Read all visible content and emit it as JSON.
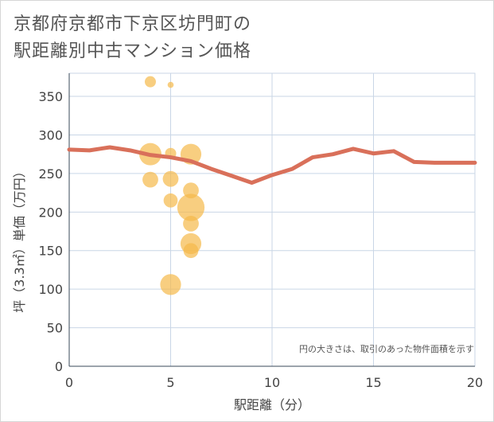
{
  "chart_data": {
    "type": "scatter",
    "title_line1": "京都府京都市下京区坊門町の",
    "title_line2": "駅距離別中古マンション価格",
    "xlabel": "駅距離（分）",
    "ylabel": "坪（3.3㎡）単価（万円）",
    "xlim": [
      0,
      20
    ],
    "ylim": [
      0,
      380
    ],
    "xticks": [
      0,
      5,
      10,
      15,
      20
    ],
    "yticks": [
      0,
      50,
      100,
      150,
      200,
      250,
      300,
      350
    ],
    "note": "円の大きさは、取引のあった物件面積を示す",
    "colors": {
      "bubble": "#f5b94a",
      "line": "#d9705a",
      "grid": "#c9d6e6"
    },
    "bubbles": [
      {
        "x": 4,
        "y": 369,
        "size": 1
      },
      {
        "x": 5,
        "y": 365,
        "size": 0.3
      },
      {
        "x": 4,
        "y": 275,
        "size": 4
      },
      {
        "x": 4,
        "y": 242,
        "size": 2
      },
      {
        "x": 5,
        "y": 276,
        "size": 1
      },
      {
        "x": 5,
        "y": 243,
        "size": 2
      },
      {
        "x": 5,
        "y": 215,
        "size": 1.6
      },
      {
        "x": 5,
        "y": 106,
        "size": 3.5
      },
      {
        "x": 6,
        "y": 275,
        "size": 3.5
      },
      {
        "x": 6,
        "y": 228,
        "size": 2
      },
      {
        "x": 6,
        "y": 206,
        "size": 6
      },
      {
        "x": 6,
        "y": 185,
        "size": 2
      },
      {
        "x": 6,
        "y": 159,
        "size": 3.5
      },
      {
        "x": 6,
        "y": 150,
        "size": 1.8
      }
    ],
    "line": {
      "x": [
        0,
        1,
        2,
        3,
        4,
        5,
        6,
        7,
        8,
        9,
        10,
        11,
        12,
        13,
        14,
        15,
        16,
        17,
        18,
        19,
        20
      ],
      "y": [
        281,
        280,
        284,
        280,
        274,
        271,
        266,
        256,
        247,
        238,
        248,
        256,
        271,
        275,
        282,
        276,
        279,
        265,
        264,
        264,
        264
      ]
    }
  }
}
